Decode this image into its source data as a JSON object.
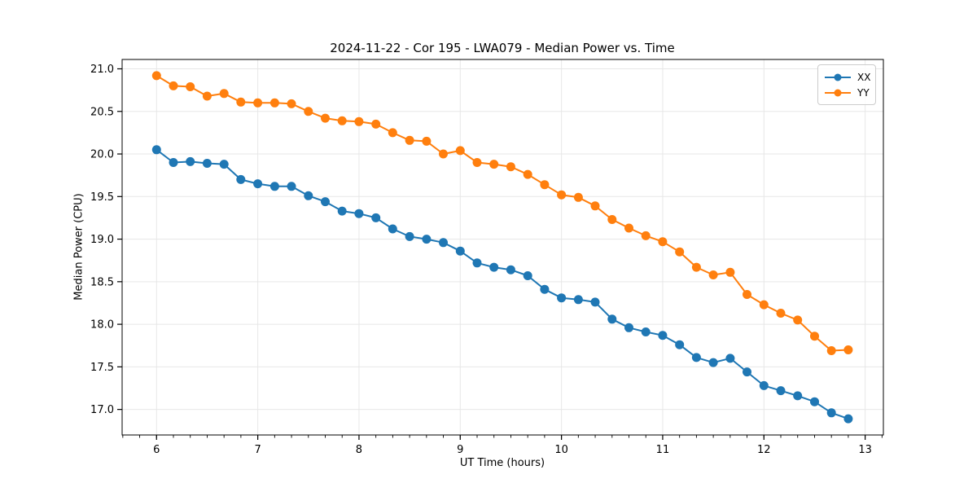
{
  "chart_data": {
    "type": "line",
    "title": "2024-11-22 - Cor 195 - LWA079 - Median Power vs. Time",
    "xlabel": "UT Time (hours)",
    "ylabel": "Median Power (CPU)",
    "xlim": [
      5.66,
      13.18
    ],
    "ylim": [
      16.7,
      21.11
    ],
    "grid": true,
    "legend_position": "upper right",
    "xticks": [
      6,
      7,
      8,
      9,
      10,
      11,
      12,
      13
    ],
    "xtick_labels": [
      "6",
      "7",
      "8",
      "9",
      "10",
      "11",
      "12",
      "13"
    ],
    "minor_xtick_step": 0.1666667,
    "yticks": [
      17.0,
      17.5,
      18.0,
      18.5,
      19.0,
      19.5,
      20.0,
      20.5,
      21.0
    ],
    "ytick_labels": [
      "17.0",
      "17.5",
      "18.0",
      "18.5",
      "19.0",
      "19.5",
      "20.0",
      "20.5",
      "21.0"
    ],
    "x": [
      6.0,
      6.167,
      6.333,
      6.5,
      6.667,
      6.833,
      7.0,
      7.167,
      7.333,
      7.5,
      7.667,
      7.833,
      8.0,
      8.167,
      8.333,
      8.5,
      8.667,
      8.833,
      9.0,
      9.167,
      9.333,
      9.5,
      9.667,
      9.833,
      10.0,
      10.167,
      10.333,
      10.5,
      10.667,
      10.833,
      11.0,
      11.167,
      11.333,
      11.5,
      11.667,
      11.833,
      12.0,
      12.167,
      12.333,
      12.5,
      12.667,
      12.833
    ],
    "series": [
      {
        "name": "XX",
        "color": "#1f77b4",
        "values": [
          20.05,
          19.9,
          19.91,
          19.89,
          19.88,
          19.7,
          19.65,
          19.62,
          19.62,
          19.51,
          19.44,
          19.33,
          19.3,
          19.25,
          19.12,
          19.03,
          19.0,
          18.96,
          18.86,
          18.72,
          18.67,
          18.64,
          18.57,
          18.41,
          18.31,
          18.29,
          18.26,
          18.06,
          17.96,
          17.91,
          17.87,
          17.76,
          17.61,
          17.55,
          17.6,
          17.44,
          17.28,
          17.22,
          17.16,
          17.09,
          16.96,
          16.89
        ]
      },
      {
        "name": "YY",
        "color": "#ff7f0e",
        "values": [
          20.92,
          20.8,
          20.79,
          20.68,
          20.71,
          20.61,
          20.6,
          20.6,
          20.59,
          20.5,
          20.42,
          20.39,
          20.38,
          20.35,
          20.25,
          20.16,
          20.15,
          20.0,
          20.04,
          19.9,
          19.88,
          19.85,
          19.76,
          19.64,
          19.52,
          19.49,
          19.39,
          19.23,
          19.13,
          19.04,
          18.97,
          18.85,
          18.67,
          18.58,
          18.61,
          18.35,
          18.23,
          18.13,
          18.05,
          17.86,
          17.69,
          17.7
        ]
      }
    ],
    "style": {
      "grid_color": "#e7e7e7",
      "spine_color": "#000000",
      "background": "#ffffff",
      "marker_radius": 5.5,
      "line_width": 2
    }
  }
}
